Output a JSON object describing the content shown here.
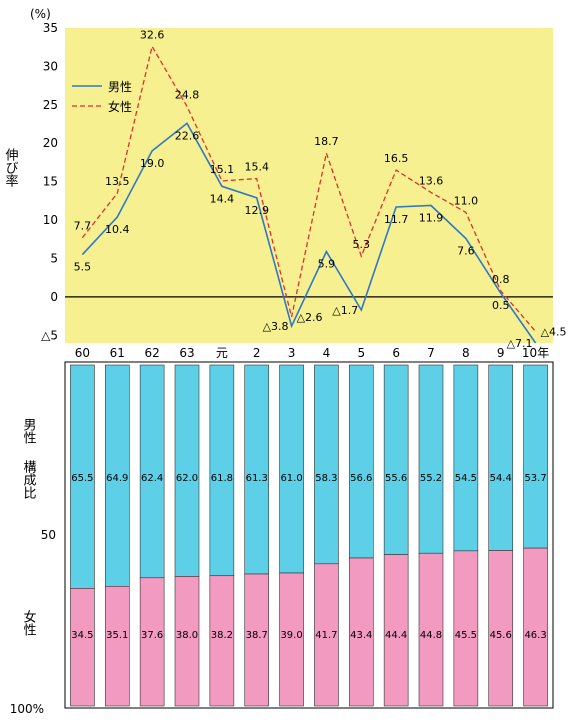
{
  "chart_data": [
    {
      "type": "line",
      "ylabel": "伸び率",
      "yunit": "(%)",
      "ylim": [
        -6,
        35
      ],
      "yticks": [
        35,
        30,
        25,
        20,
        15,
        10,
        5,
        0
      ],
      "yticks_neg_label": "△5",
      "legend_placement": "top-left",
      "colors": {
        "plot_bg": "#f6f090",
        "male": "#2f78c4",
        "female": "#e0302c",
        "zero_line": "#000000"
      },
      "series": [
        {
          "name": "男性",
          "values": [
            5.5,
            10.4,
            19.0,
            22.6,
            14.4,
            12.9,
            -3.8,
            5.9,
            -1.7,
            11.7,
            11.9,
            7.6,
            0.5,
            -7.1
          ],
          "labels": [
            "5.5",
            "10.4",
            "19.0",
            "22.6",
            "14.4",
            "12.9",
            "△3.8",
            "5.9",
            "△1.7",
            "11.7",
            "11.9",
            "7.6",
            "0.5",
            "△7.1"
          ]
        },
        {
          "name": "女性",
          "values": [
            7.7,
            13.5,
            32.6,
            24.8,
            15.1,
            15.4,
            -2.6,
            18.7,
            5.3,
            16.5,
            13.6,
            11.0,
            0.8,
            -4.5
          ],
          "labels": [
            "7.7",
            "13.5",
            "32.6",
            "24.8",
            "15.1",
            "15.4",
            "△2.6",
            "18.7",
            "5.3",
            "16.5",
            "13.6",
            "11.0",
            "0.8",
            "△4.5"
          ]
        }
      ]
    },
    {
      "type": "bar",
      "stacked": true,
      "ylabel": "構成比",
      "yticks_labels": [
        "50",
        "100%"
      ],
      "categories": [
        "60",
        "61",
        "62",
        "63",
        "元",
        "2",
        "3",
        "4",
        "5",
        "6",
        "7",
        "8",
        "9",
        "10年"
      ],
      "colors": {
        "male": "#5dd0e8",
        "female": "#f29ac0"
      },
      "series": [
        {
          "name": "男性",
          "values": [
            65.5,
            64.9,
            62.4,
            62.0,
            61.8,
            61.3,
            61.0,
            58.3,
            56.6,
            55.6,
            55.2,
            54.5,
            54.4,
            53.7
          ]
        },
        {
          "name": "女性",
          "values": [
            34.5,
            35.1,
            37.6,
            38.0,
            38.2,
            38.7,
            39.0,
            41.7,
            43.4,
            44.4,
            44.8,
            45.5,
            45.6,
            46.3
          ]
        }
      ]
    }
  ]
}
